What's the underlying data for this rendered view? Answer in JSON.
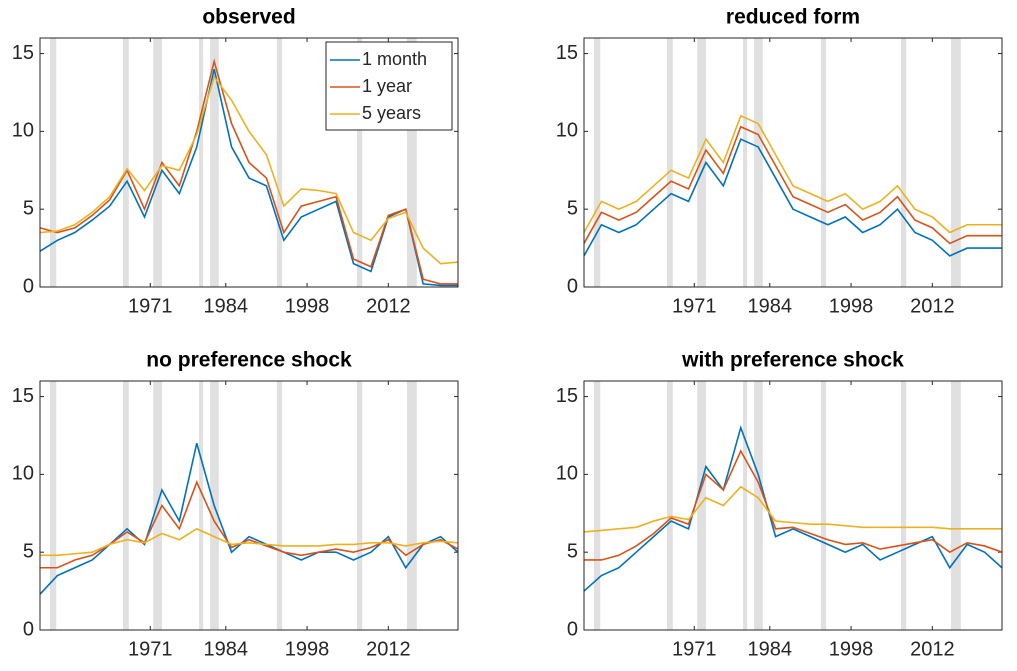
{
  "chart_data": [
    {
      "type": "line",
      "title": "observed",
      "legend": "upper right",
      "x": [
        1952,
        1955,
        1958,
        1961,
        1964,
        1967,
        1970,
        1973,
        1976,
        1979,
        1982,
        1985,
        1988,
        1991,
        1994,
        1997,
        2000,
        2003,
        2006,
        2009,
        2012,
        2015,
        2018,
        2021,
        2024
      ],
      "series": [
        {
          "name": "1 month",
          "color": "#0072bd",
          "values": [
            2.3,
            3.0,
            3.5,
            4.3,
            5.2,
            6.8,
            4.5,
            7.5,
            6.0,
            9.0,
            14.0,
            9.0,
            7.0,
            6.5,
            3.0,
            4.5,
            5.0,
            5.5,
            1.5,
            1.0,
            4.5,
            5.0,
            0.2,
            0.1,
            0.1
          ]
        },
        {
          "name": "1 year",
          "color": "#d95319",
          "values": [
            3.8,
            3.5,
            3.8,
            4.6,
            5.6,
            7.5,
            5.0,
            8.0,
            6.5,
            10.0,
            14.5,
            10.5,
            8.0,
            7.0,
            3.5,
            5.2,
            5.5,
            5.8,
            1.8,
            1.3,
            4.6,
            5.0,
            0.5,
            0.2,
            0.2
          ]
        },
        {
          "name": "5 years",
          "color": "#edb120",
          "values": [
            3.5,
            3.6,
            4.0,
            4.8,
            5.8,
            7.6,
            6.2,
            7.8,
            7.5,
            9.8,
            13.5,
            12.0,
            10.0,
            8.5,
            5.2,
            6.3,
            6.2,
            6.0,
            3.5,
            3.0,
            4.4,
            4.8,
            2.5,
            1.5,
            1.6
          ]
        }
      ],
      "xlim": [
        1952,
        2024
      ],
      "ylim": [
        0,
        16
      ],
      "xticks": [
        1971,
        1984,
        1998,
        2012
      ],
      "yticks": [
        0,
        5,
        10,
        15
      ],
      "shading": [
        [
          1953.7,
          1954.8
        ],
        [
          1966.3,
          1967.3
        ],
        [
          1971.5,
          1973.0
        ],
        [
          1979.4,
          1980.1
        ],
        [
          1981.3,
          1982.8
        ],
        [
          1992.8,
          1993.7
        ],
        [
          2006.6,
          2007.5
        ],
        [
          2015.2,
          2016.9
        ]
      ],
      "shading_color": "#e0e0e0"
    },
    {
      "type": "line",
      "title": "reduced form",
      "x": [
        1952,
        1955,
        1958,
        1961,
        1964,
        1967,
        1970,
        1973,
        1976,
        1979,
        1982,
        1985,
        1988,
        1991,
        1994,
        1997,
        2000,
        2003,
        2006,
        2009,
        2012,
        2015,
        2018,
        2021,
        2024
      ],
      "series": [
        {
          "color": "#0072bd",
          "values": [
            2.0,
            4.0,
            3.5,
            4.0,
            5.0,
            6.0,
            5.5,
            8.0,
            6.5,
            9.5,
            9.0,
            7.0,
            5.0,
            4.5,
            4.0,
            4.5,
            3.5,
            4.0,
            5.0,
            3.5,
            3.0,
            2.0,
            2.5,
            2.5,
            2.5
          ]
        },
        {
          "color": "#d95319",
          "values": [
            2.8,
            4.8,
            4.3,
            4.8,
            5.8,
            6.8,
            6.3,
            8.8,
            7.3,
            10.3,
            9.8,
            7.8,
            5.8,
            5.3,
            4.8,
            5.3,
            4.3,
            4.8,
            5.8,
            4.3,
            3.8,
            2.8,
            3.3,
            3.3,
            3.3
          ]
        },
        {
          "color": "#edb120",
          "values": [
            3.5,
            5.5,
            5.0,
            5.5,
            6.5,
            7.5,
            7.0,
            9.5,
            8.0,
            11.0,
            10.5,
            8.5,
            6.5,
            6.0,
            5.5,
            6.0,
            5.0,
            5.5,
            6.5,
            5.0,
            4.5,
            3.5,
            4.0,
            4.0,
            4.0
          ]
        }
      ],
      "xlim": [
        1952,
        2024
      ],
      "ylim": [
        0,
        16
      ],
      "xticks": [
        1971,
        1984,
        1998,
        2012
      ],
      "yticks": [
        0,
        5,
        10,
        15
      ],
      "shading": [
        [
          1953.7,
          1954.8
        ],
        [
          1966.3,
          1967.3
        ],
        [
          1971.5,
          1973.0
        ],
        [
          1979.4,
          1980.1
        ],
        [
          1981.3,
          1982.8
        ],
        [
          1992.8,
          1993.7
        ],
        [
          2006.6,
          2007.5
        ],
        [
          2015.2,
          2016.9
        ]
      ],
      "shading_color": "#e0e0e0"
    },
    {
      "type": "line",
      "title": "no preference shock",
      "x": [
        1952,
        1955,
        1958,
        1961,
        1964,
        1967,
        1970,
        1973,
        1976,
        1979,
        1982,
        1985,
        1988,
        1991,
        1994,
        1997,
        2000,
        2003,
        2006,
        2009,
        2012,
        2015,
        2018,
        2021,
        2024
      ],
      "series": [
        {
          "color": "#0072bd",
          "values": [
            2.3,
            3.5,
            4.0,
            4.5,
            5.5,
            6.5,
            5.5,
            9.0,
            7.0,
            12.0,
            8.0,
            5.0,
            6.0,
            5.5,
            5.0,
            4.5,
            5.0,
            5.0,
            4.5,
            5.0,
            6.0,
            4.0,
            5.5,
            6.0,
            5.0
          ]
        },
        {
          "color": "#d95319",
          "values": [
            4.0,
            4.0,
            4.5,
            4.8,
            5.5,
            6.3,
            5.6,
            8.0,
            6.5,
            9.5,
            7.0,
            5.3,
            5.8,
            5.4,
            5.0,
            4.8,
            5.0,
            5.2,
            5.0,
            5.3,
            5.8,
            4.8,
            5.5,
            5.8,
            5.2
          ]
        },
        {
          "color": "#edb120",
          "values": [
            4.8,
            4.8,
            4.9,
            5.0,
            5.5,
            5.8,
            5.6,
            6.2,
            5.8,
            6.5,
            6.0,
            5.5,
            5.6,
            5.5,
            5.4,
            5.4,
            5.4,
            5.5,
            5.5,
            5.6,
            5.6,
            5.4,
            5.6,
            5.7,
            5.6
          ]
        }
      ],
      "xlim": [
        1952,
        2024
      ],
      "ylim": [
        0,
        16
      ],
      "xticks": [
        1971,
        1984,
        1998,
        2012
      ],
      "yticks": [
        0,
        5,
        10,
        15
      ],
      "shading": [
        [
          1953.7,
          1954.8
        ],
        [
          1966.3,
          1967.3
        ],
        [
          1971.5,
          1973.0
        ],
        [
          1979.4,
          1980.1
        ],
        [
          1981.3,
          1982.8
        ],
        [
          1992.8,
          1993.7
        ],
        [
          2006.6,
          2007.5
        ],
        [
          2015.2,
          2016.9
        ]
      ],
      "shading_color": "#e0e0e0"
    },
    {
      "type": "line",
      "title": "with preference shock",
      "x": [
        1952,
        1955,
        1958,
        1961,
        1964,
        1967,
        1970,
        1973,
        1976,
        1979,
        1982,
        1985,
        1988,
        1991,
        1994,
        1997,
        2000,
        2003,
        2006,
        2009,
        2012,
        2015,
        2018,
        2021,
        2024
      ],
      "series": [
        {
          "color": "#0072bd",
          "values": [
            2.5,
            3.5,
            4.0,
            5.0,
            6.0,
            7.0,
            6.5,
            10.5,
            9.0,
            13.0,
            10.0,
            6.0,
            6.5,
            6.0,
            5.5,
            5.0,
            5.5,
            4.5,
            5.0,
            5.5,
            6.0,
            4.0,
            5.5,
            5.0,
            4.0
          ]
        },
        {
          "color": "#d95319",
          "values": [
            4.5,
            4.5,
            4.8,
            5.4,
            6.2,
            7.2,
            6.8,
            10.0,
            9.0,
            11.5,
            9.5,
            6.5,
            6.6,
            6.2,
            5.8,
            5.5,
            5.6,
            5.2,
            5.4,
            5.6,
            5.8,
            5.0,
            5.6,
            5.4,
            5.0
          ]
        },
        {
          "color": "#edb120",
          "values": [
            6.3,
            6.4,
            6.5,
            6.6,
            7.0,
            7.3,
            7.1,
            8.5,
            8.0,
            9.2,
            8.5,
            7.0,
            6.9,
            6.8,
            6.8,
            6.7,
            6.6,
            6.6,
            6.6,
            6.6,
            6.6,
            6.5,
            6.5,
            6.5,
            6.5
          ]
        }
      ],
      "xlim": [
        1952,
        2024
      ],
      "ylim": [
        0,
        16
      ],
      "xticks": [
        1971,
        1984,
        1998,
        2012
      ],
      "yticks": [
        0,
        5,
        10,
        15
      ],
      "shading": [
        [
          1953.7,
          1954.8
        ],
        [
          1966.3,
          1967.3
        ],
        [
          1971.5,
          1973.0
        ],
        [
          1979.4,
          1980.1
        ],
        [
          1981.3,
          1982.8
        ],
        [
          1992.8,
          1993.7
        ],
        [
          2006.6,
          2007.5
        ],
        [
          2015.2,
          2016.9
        ]
      ],
      "shading_color": "#e0e0e0"
    }
  ]
}
